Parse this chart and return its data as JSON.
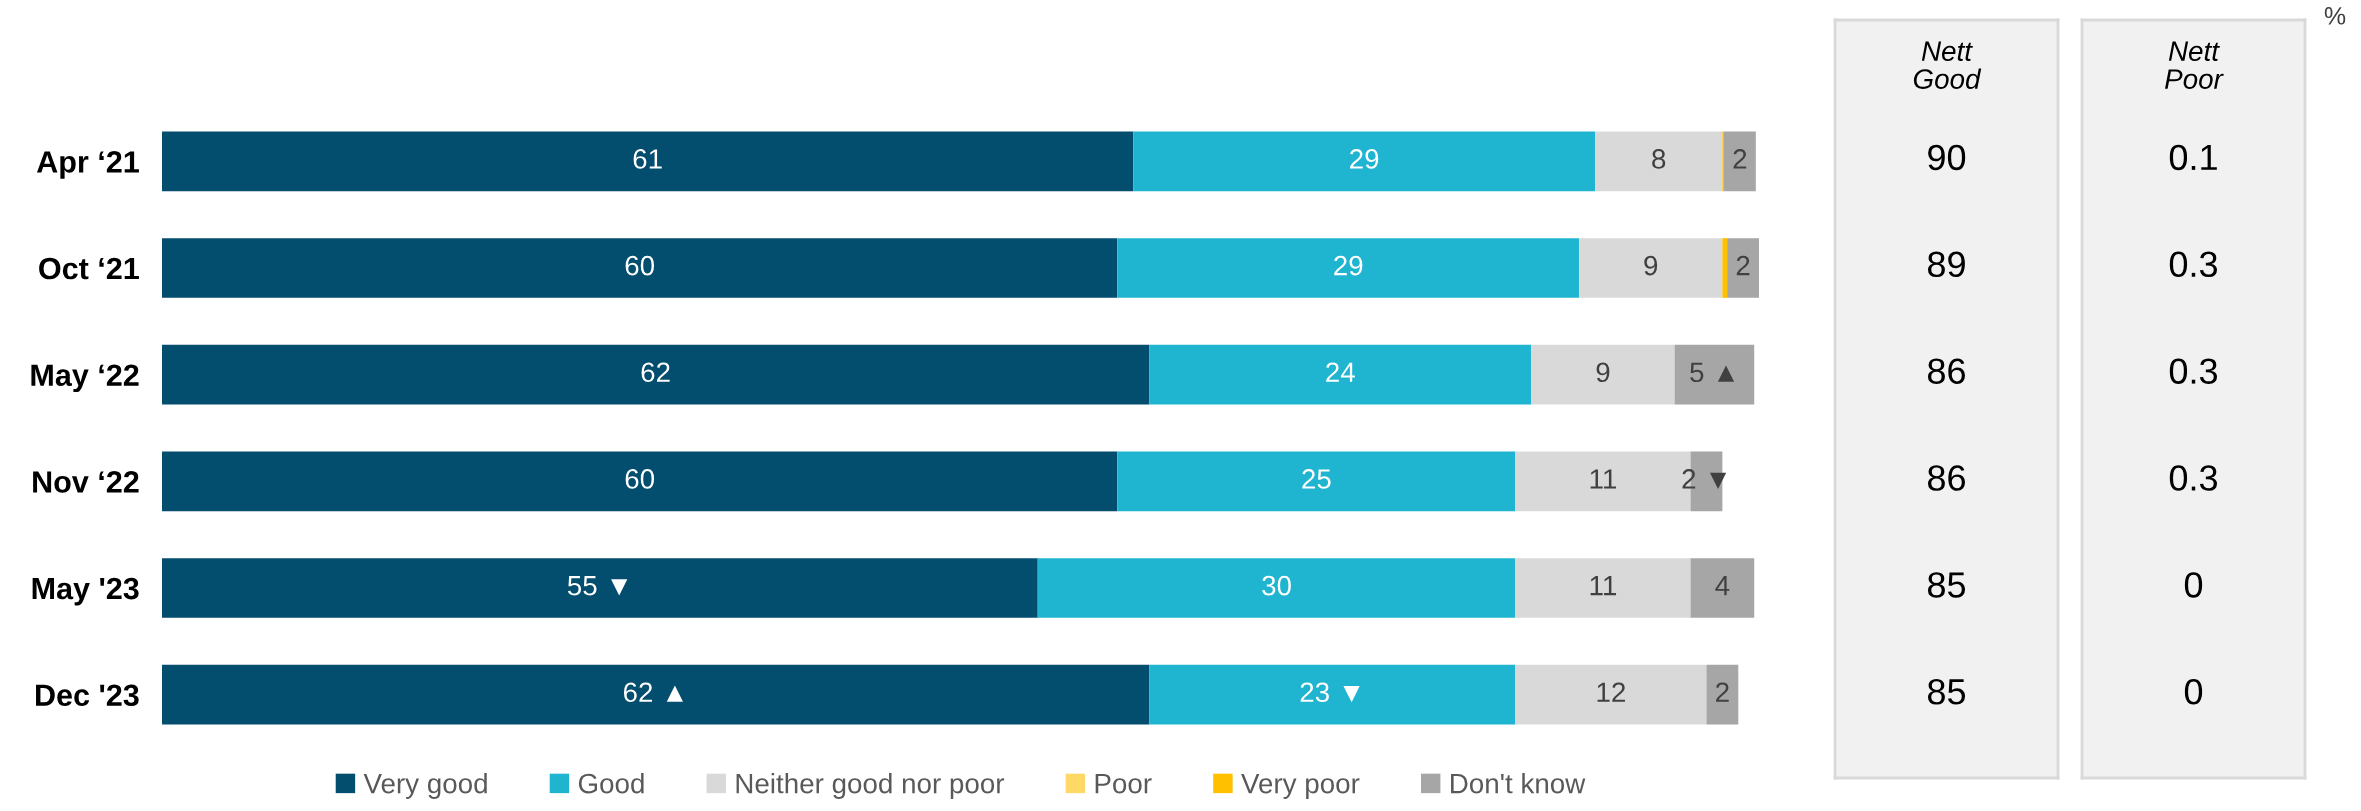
{
  "chart_data": [
    {
      "type": "bar",
      "orientation": "horizontal",
      "stacked": true,
      "legend": "bottom",
      "categories": [
        "Apr ‘21",
        "Oct ‘21",
        "May ‘22",
        "Nov ‘22",
        "May '23",
        "Dec '23"
      ],
      "series": [
        {
          "name": "Very good",
          "color": "#034d6e",
          "values": [
            61,
            60,
            62,
            60,
            55,
            62
          ],
          "value_labels": [
            "61",
            "60",
            "62",
            "60",
            "55 ▼",
            "62 ▲"
          ]
        },
        {
          "name": "Good",
          "color": "#1fb4d0",
          "values": [
            29,
            29,
            24,
            25,
            30,
            23
          ],
          "value_labels": [
            "29",
            "29",
            "24",
            "25",
            "30",
            "23 ▼"
          ]
        },
        {
          "name": "Neither good nor poor",
          "color": "#d9d9d9",
          "values": [
            8,
            9,
            9,
            11,
            11,
            12
          ],
          "value_labels": [
            "8",
            "9",
            "9",
            "11",
            "11",
            "12"
          ]
        },
        {
          "name": "Poor",
          "color": "#ffd966",
          "values": [
            null,
            null,
            null,
            null,
            null,
            null
          ]
        },
        {
          "name": "Very poor",
          "color": "#ffc000",
          "values": [
            0.1,
            0.3,
            null,
            null,
            null,
            null
          ],
          "value_labels": [
            null,
            null,
            null,
            null,
            null,
            null
          ]
        },
        {
          "name": "Don't know",
          "color": "#a6a6a6",
          "values": [
            2,
            2,
            5,
            2,
            4,
            2
          ],
          "value_labels": [
            "2",
            "2",
            "5 ▲",
            "2 ▼",
            "4",
            "2"
          ]
        }
      ]
    },
    {
      "type": "other",
      "title": "Nett\nGood",
      "categories": [
        null,
        null,
        null,
        null,
        null,
        null
      ],
      "values": [
        90,
        89,
        86,
        86,
        85,
        85
      ],
      "data_labels": true
    },
    {
      "type": "other",
      "title": "Nett\nPoor",
      "categories": [
        null,
        null,
        null,
        null,
        null,
        null
      ],
      "values": [
        0.1,
        0.3,
        0.3,
        0.3,
        0,
        0
      ],
      "data_labels": true,
      "annotations": [
        "%"
      ]
    }
  ]
}
